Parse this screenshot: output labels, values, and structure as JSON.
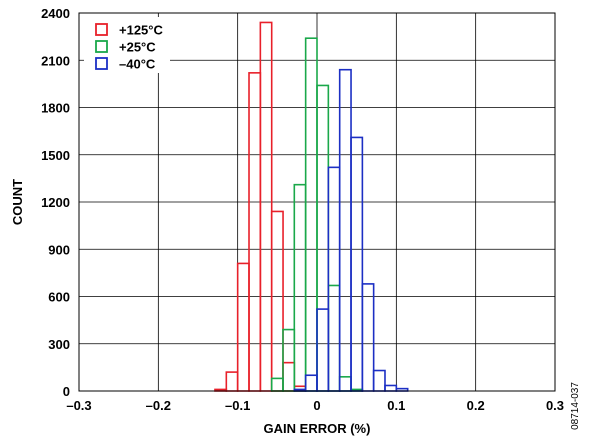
{
  "figure_id": "08714-037",
  "chart_data": {
    "type": "bar",
    "xlabel": "GAIN ERROR (%)",
    "ylabel": "COUNT",
    "xlim": [
      -0.3,
      0.3
    ],
    "ylim": [
      0,
      2400
    ],
    "x_ticks": [
      -0.3,
      -0.2,
      -0.1,
      0,
      0.1,
      0.2,
      0.3
    ],
    "x_tick_labels": [
      "–0.3",
      "–0.2",
      "–0.1",
      "0",
      "0.1",
      "0.2",
      "0.3"
    ],
    "y_ticks": [
      0,
      300,
      600,
      900,
      1200,
      1500,
      1800,
      2100,
      2400
    ],
    "y_tick_labels": [
      "0",
      "300",
      "600",
      "900",
      "1200",
      "1500",
      "1800",
      "2100",
      "2400"
    ],
    "grid": true,
    "legend_position": "top-left",
    "bin_width": 0.0143,
    "series": [
      {
        "name": "+125°C",
        "color": "#e8202a",
        "bins": [
          {
            "start": -0.1286,
            "count": 10
          },
          {
            "start": -0.1143,
            "count": 120
          },
          {
            "start": -0.1,
            "count": 810
          },
          {
            "start": -0.0857,
            "count": 2020
          },
          {
            "start": -0.0714,
            "count": 2340
          },
          {
            "start": -0.0571,
            "count": 1140
          },
          {
            "start": -0.0429,
            "count": 180
          },
          {
            "start": -0.0286,
            "count": 30
          }
        ]
      },
      {
        "name": "+25°C",
        "color": "#1aa84a",
        "bins": [
          {
            "start": -0.0571,
            "count": 80
          },
          {
            "start": -0.0429,
            "count": 390
          },
          {
            "start": -0.0286,
            "count": 1310
          },
          {
            "start": -0.0143,
            "count": 2240
          },
          {
            "start": 0.0,
            "count": 1940
          },
          {
            "start": 0.0143,
            "count": 670
          },
          {
            "start": 0.0286,
            "count": 90
          },
          {
            "start": 0.0429,
            "count": 10
          }
        ]
      },
      {
        "name": "–40°C",
        "color": "#1c2fc4",
        "bins": [
          {
            "start": -0.0286,
            "count": 10
          },
          {
            "start": -0.0143,
            "count": 100
          },
          {
            "start": 0.0,
            "count": 520
          },
          {
            "start": 0.0143,
            "count": 1420
          },
          {
            "start": 0.0286,
            "count": 2040
          },
          {
            "start": 0.0429,
            "count": 1610
          },
          {
            "start": 0.0571,
            "count": 680
          },
          {
            "start": 0.0714,
            "count": 130
          },
          {
            "start": 0.0857,
            "count": 35
          },
          {
            "start": 0.1,
            "count": 15
          }
        ]
      }
    ]
  }
}
